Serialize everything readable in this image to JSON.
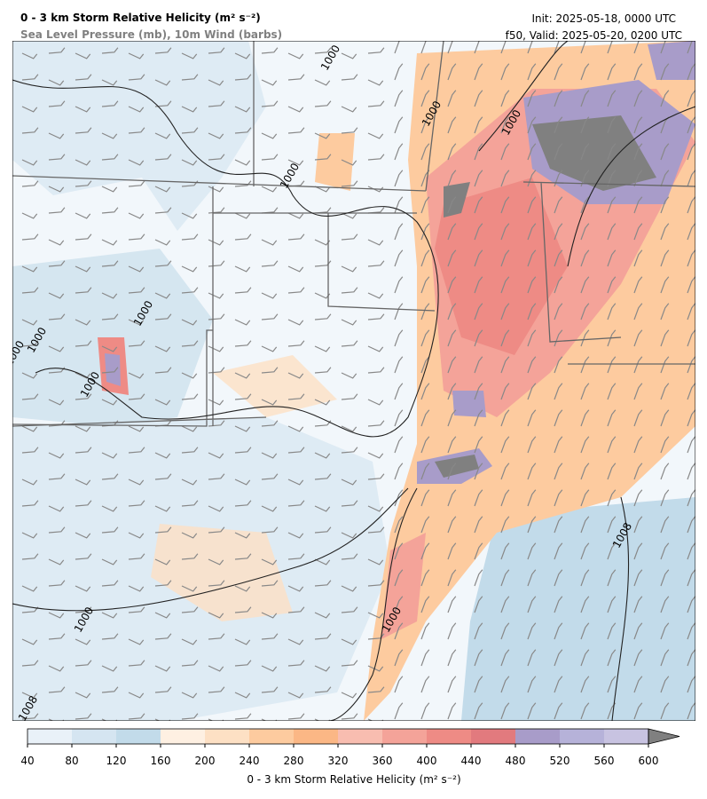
{
  "header": {
    "title": "0 - 3 km Storm Relative Helicity (m² s⁻²)",
    "subtitle": "Sea Level Pressure (mb), 10m Wind (barbs)",
    "init": "Init: 2025-05-18, 0000 UTC",
    "valid": "f50, Valid: 2025-05-20, 0200 UTC"
  },
  "map": {
    "contour_labels": [
      "1000",
      "1000",
      "1000",
      "1000",
      "1000",
      "1000",
      "1000",
      "1000",
      "1000",
      "1000",
      "1008",
      "1008"
    ]
  },
  "colorbar": {
    "label": "0 - 3 km Storm Relative Helicity (m² s⁻²)",
    "ticks": [
      40,
      80,
      120,
      160,
      200,
      240,
      280,
      320,
      360,
      400,
      440,
      480,
      520,
      560,
      600
    ],
    "colors": [
      "#e9f1f8",
      "#d5e5f1",
      "#c2dbea",
      "#fef0e2",
      "#fde0c4",
      "#fdcb9f",
      "#fbb785",
      "#f8bdb0",
      "#f4a399",
      "#ee8b85",
      "#e27a7e",
      "#a89cc9",
      "#b6b2d9",
      "#c8c3e1"
    ],
    "extend_color": "#808080"
  }
}
